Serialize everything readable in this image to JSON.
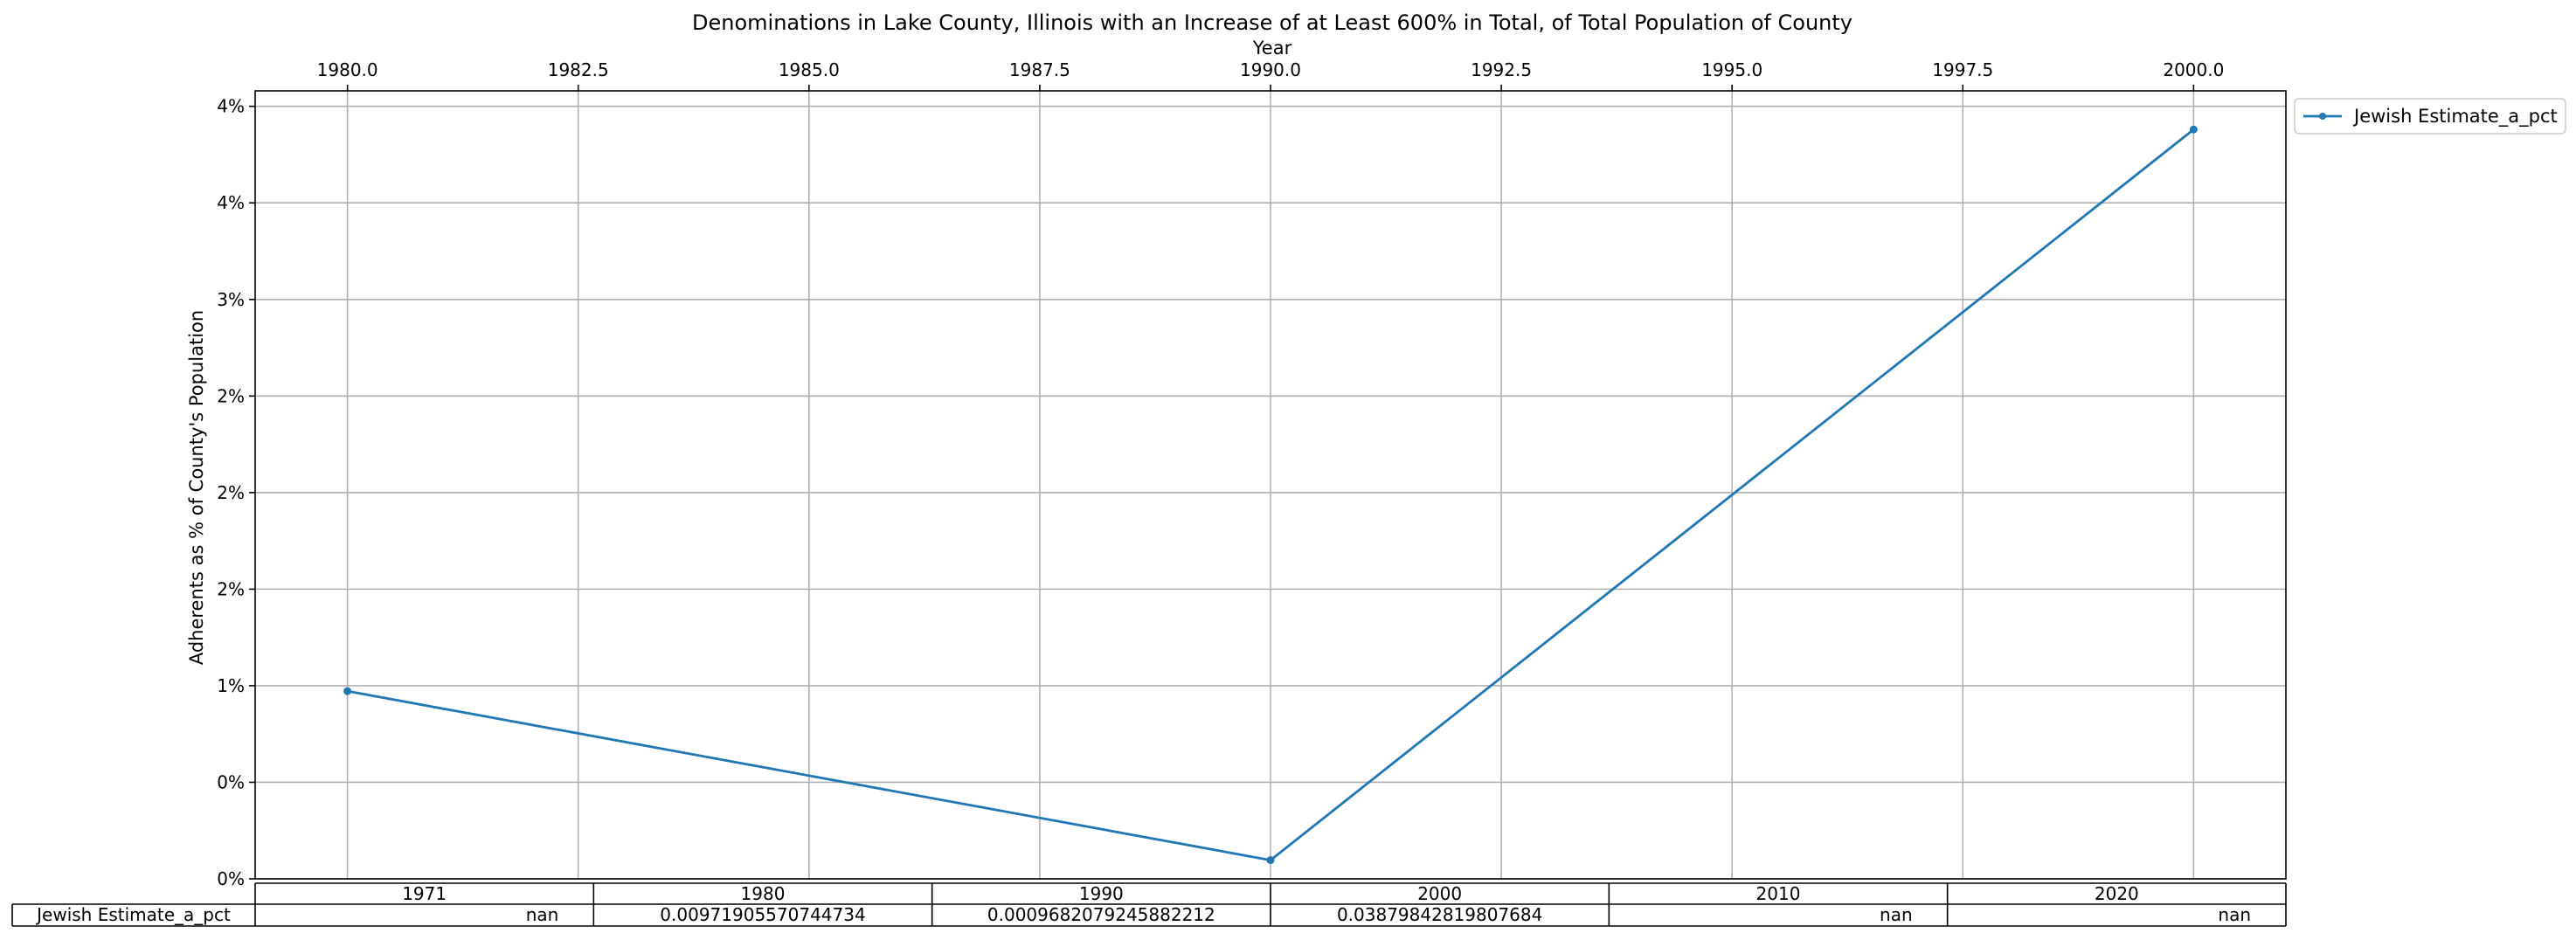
{
  "chart_data": {
    "type": "line",
    "title": "Denominations in Lake County, Illinois with an Increase of at Least 600% in Total, of Total Population of County",
    "xlabel": "Year",
    "ylabel": "Adherents as % of County's Population",
    "xlim": [
      1979.0,
      2001.0
    ],
    "ylim": [
      0.0,
      0.0408
    ],
    "x_ticks": [
      "1980.0",
      "1982.5",
      "1985.0",
      "1987.5",
      "1990.0",
      "1992.5",
      "1995.0",
      "1997.5",
      "2000.0"
    ],
    "x_tick_values": [
      1980.0,
      1982.5,
      1985.0,
      1987.5,
      1990.0,
      1992.5,
      1995.0,
      1997.5,
      2000.0
    ],
    "y_ticks": [
      "0%",
      "0%",
      "1%",
      "2%",
      "2%",
      "2%",
      "3%",
      "4%",
      "4%"
    ],
    "y_tick_values": [
      0.0,
      0.005,
      0.01,
      0.015,
      0.02,
      0.025,
      0.03,
      0.035,
      0.04
    ],
    "grid": true,
    "legend_position": "outside-top-right",
    "series": [
      {
        "name": "Jewish Estimate_a_pct",
        "color": "#1f77b4",
        "x": [
          1980,
          1990,
          2000
        ],
        "y": [
          0.00971905570744734,
          0.0009682079245882212,
          0.03879842819807684
        ]
      }
    ],
    "table": {
      "columns": [
        "1971",
        "1980",
        "1990",
        "2000",
        "2010",
        "2020"
      ],
      "rows": [
        {
          "label": "Jewish Estimate_a_pct",
          "cells": [
            "nan",
            "0.00971905570744734",
            "0.0009682079245882212",
            "0.03879842819807684",
            "nan",
            "nan"
          ]
        }
      ]
    }
  }
}
